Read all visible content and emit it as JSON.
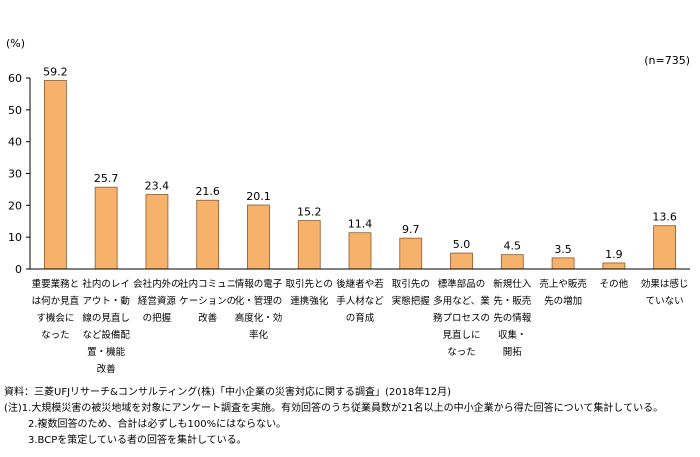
{
  "chart_data": {
    "type": "bar",
    "y_unit": "(%)",
    "sample_size": "(n=735)",
    "ylim": [
      0,
      60
    ],
    "yticks": [
      "0",
      "10",
      "20",
      "30",
      "40",
      "50",
      "60"
    ],
    "grid": false,
    "bar_color": "#F6B26B",
    "bar_stroke": "#8B5A2B",
    "categories": [
      [
        "重要業務と",
        "は何か見直",
        "す機会に",
        "なった"
      ],
      [
        "社内のレイ",
        "アウト・動",
        "線の見直し",
        "など設備配",
        "置・機能",
        "改善"
      ],
      [
        "会社内外の",
        "経営資源",
        "の把握"
      ],
      [
        "社内コミュニ",
        "ケーションの",
        "改善"
      ],
      [
        "情報の電子",
        "化・管理の",
        "高度化・効",
        "率化"
      ],
      [
        "取引先との",
        "連携強化"
      ],
      [
        "後継者や若",
        "手人材など",
        "の育成"
      ],
      [
        "取引先の",
        "実態把握"
      ],
      [
        "標準部品の",
        "多用など、業",
        "務プロセスの",
        "見直しに",
        "なった"
      ],
      [
        "新規仕入",
        "先・販売",
        "先の情報",
        "収集・",
        "開拓"
      ],
      [
        "売上や販売",
        "先の増加"
      ],
      [
        "その他"
      ],
      [
        "効果は感じ",
        "ていない"
      ]
    ],
    "values": [
      59.2,
      25.7,
      23.4,
      21.6,
      20.1,
      15.2,
      11.4,
      9.7,
      5.0,
      4.5,
      3.5,
      1.9,
      13.6
    ],
    "value_labels": [
      "59.2",
      "25.7",
      "23.4",
      "21.6",
      "20.1",
      "15.2",
      "11.4",
      "9.7",
      "5.0",
      "4.5",
      "3.5",
      "1.9",
      "13.6"
    ]
  },
  "notes": {
    "source": "資料：三菱UFJリサーチ&コンサルティング(株)「中小企業の災害対応に関する調査」(2018年12月)",
    "note1": "(注)1.大規模災害の被災地域を対象にアンケート調査を実施。有効回答のうち従業員数が21名以上の中小企業から得た回答について集計している。",
    "note2": "2.複数回答のため、合計は必ずしも100%にはならない。",
    "note3": "3.BCPを策定している者の回答を集計している。"
  }
}
